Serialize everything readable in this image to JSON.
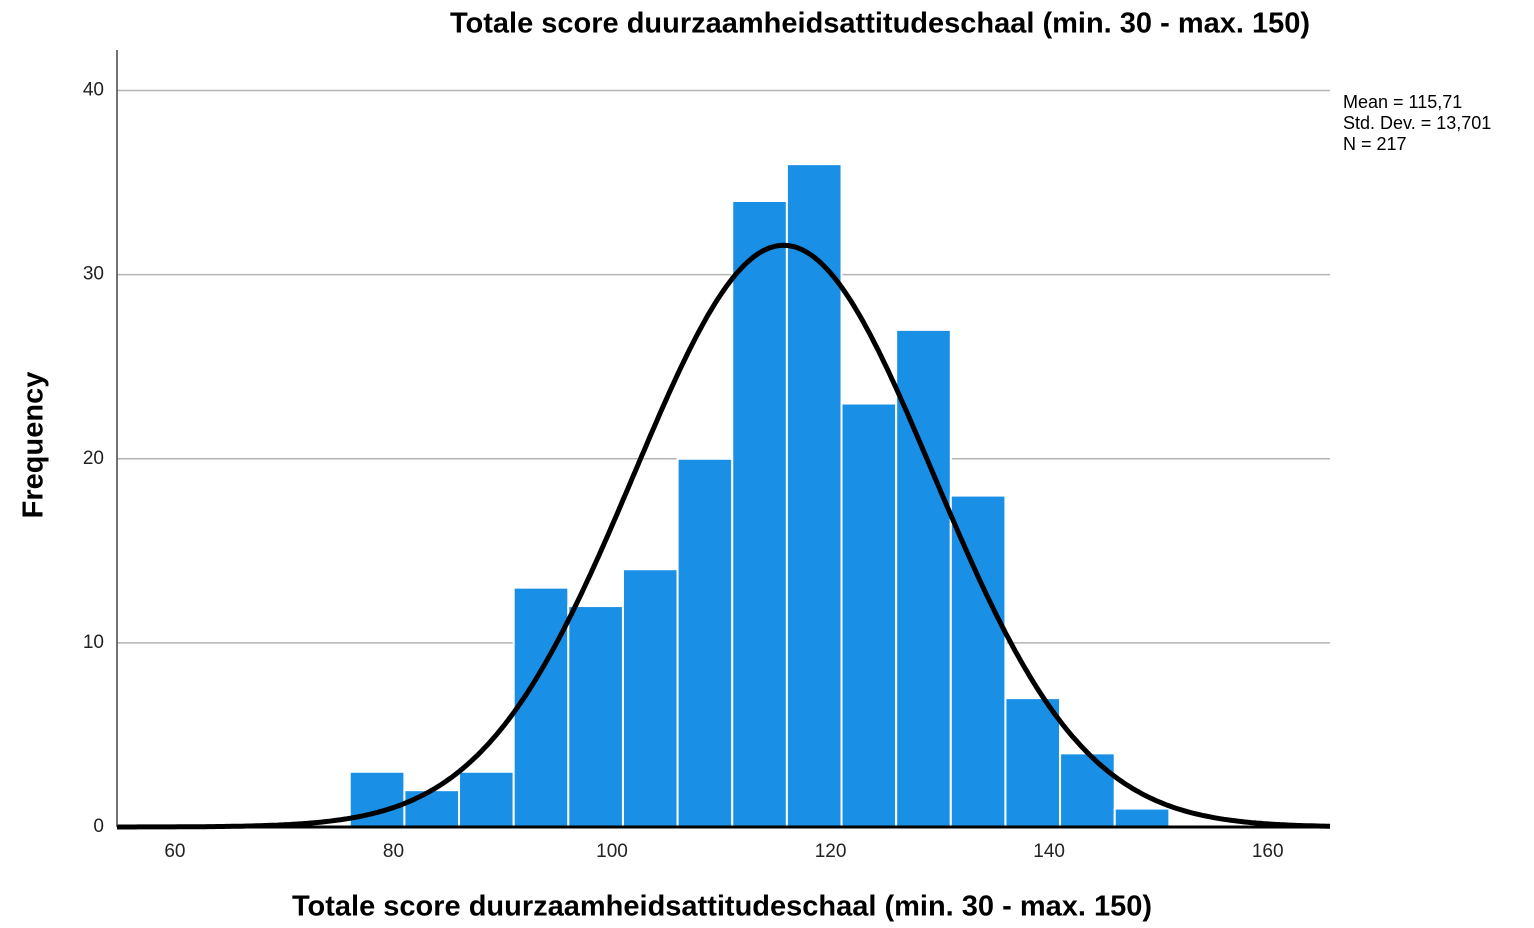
{
  "chart_data": {
    "type": "histogram",
    "title": "Totale score duurzaamheidsattitudeschaal (min. 30 - max. 150)",
    "x_label": "Totale score duurzaamheidsattitudeschaal (min. 30 - max. 150)",
    "y_label": "Frequency",
    "bins": [
      76,
      81,
      86,
      91,
      96,
      101,
      106,
      111,
      116,
      121,
      126,
      131,
      136,
      141,
      146,
      151
    ],
    "values": [
      3,
      2,
      3,
      13,
      12,
      14,
      20,
      34,
      36,
      23,
      27,
      18,
      7,
      4,
      1
    ],
    "color": "#1a8fe6",
    "curve_color": "#000000",
    "xlim": [
      54.7,
      165.7
    ],
    "xticks": [
      60,
      80,
      100,
      120,
      140,
      160
    ],
    "ylim": [
      0,
      42.2
    ],
    "yticks": [
      0,
      10,
      20,
      30,
      40
    ],
    "grid": true,
    "stats": [
      {
        "value": 115.71,
        "label": "Mean = 115,71"
      },
      {
        "value": 13.701,
        "label": "Std. Dev. = 13,701"
      },
      {
        "value": 217,
        "label": "N = 217"
      }
    ]
  }
}
